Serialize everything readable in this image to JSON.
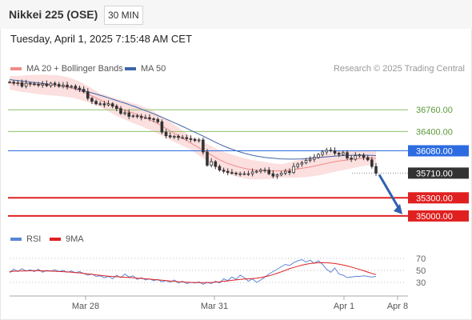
{
  "header": {
    "title": "Nikkei 225 (OSE)",
    "timeframe": "30 MIN"
  },
  "datetime": "Tuesday, April 1, 2025 7:15:48 AM CET",
  "legend": {
    "ma20_label": "MA 20 + Bollinger Bands",
    "ma20_color": "#f08b8b",
    "ma50_label": "MA 50",
    "ma50_color": "#3f64a8"
  },
  "credit": "Research © 2025 Trading Central",
  "chart_data": [
    {
      "type": "line",
      "title": "",
      "ylim": [
        34800,
        37320
      ],
      "x_tick_labels": [
        "Mar 28",
        "Mar 31",
        "Apr 1",
        "Apr 8"
      ],
      "levels": [
        {
          "label": "36760.00",
          "value": 36760,
          "kind": "resistance",
          "color": "#8cc16a"
        },
        {
          "label": "36400.00",
          "value": 36400,
          "kind": "resistance",
          "color": "#8cc16a"
        },
        {
          "label": "36080.00",
          "value": 36080,
          "kind": "pivot",
          "color": "#2d6ce0"
        },
        {
          "label": "35710.00",
          "value": 35710,
          "kind": "last_price",
          "color": "#333333"
        },
        {
          "label": "35300.00",
          "value": 35300,
          "kind": "support",
          "color": "#e02020"
        },
        {
          "label": "35000.00",
          "value": 35000,
          "kind": "support",
          "color": "#e02020"
        }
      ],
      "price_series": [
        37220,
        37200,
        37210,
        37150,
        37200,
        37190,
        37180,
        37170,
        37190,
        37160,
        37200,
        37180,
        37150,
        37170,
        37140,
        37150,
        37120,
        37100,
        37060,
        36950,
        36900,
        36860,
        36860,
        36840,
        36860,
        36820,
        36780,
        36700,
        36710,
        36650,
        36660,
        36650,
        36630,
        36630,
        36610,
        36600,
        36560,
        36390,
        36330,
        36310,
        36320,
        36300,
        36300,
        36280,
        36270,
        36250,
        36260,
        36060,
        35840,
        35900,
        35820,
        35760,
        35740,
        35720,
        35710,
        35700,
        35700,
        35700,
        35700,
        35730,
        35740,
        35760,
        35760,
        35700,
        35660,
        35680,
        35710,
        35740,
        35720,
        35820,
        35860,
        35880,
        35920,
        35940,
        35970,
        36020,
        36060,
        36090,
        36080,
        36040,
        36020,
        36050,
        35960,
        35940,
        36000,
        36010,
        35970,
        35930,
        35820,
        35710
      ],
      "ma20_series": [
        37210,
        37200,
        37195,
        37190,
        37190,
        37188,
        37184,
        37180,
        37176,
        37172,
        37168,
        37164,
        37158,
        37150,
        37138,
        37122,
        37100,
        37078,
        37050,
        37020,
        36988,
        36956,
        36924,
        36892,
        36860,
        36830,
        36800,
        36776,
        36752,
        36728,
        36704,
        36680,
        36655,
        36628,
        36600,
        36566,
        36530,
        36490,
        36450,
        36410,
        36370,
        36330,
        36290,
        36250,
        36210,
        36170,
        36130,
        36090,
        36050,
        36010,
        35970,
        35930,
        35900,
        35870,
        35846,
        35826,
        35806,
        35790,
        35776,
        35766,
        35760,
        35756,
        35752,
        35748,
        35744,
        35744,
        35748,
        35752,
        35760,
        35770,
        35780,
        35790,
        35800,
        35812,
        35826,
        35840,
        35856,
        35872,
        35886,
        35900,
        35910,
        35920,
        35928,
        35936,
        35944,
        35950,
        35954,
        35956,
        35956,
        35954
      ],
      "ma50_series": [
        37260,
        37252,
        37244,
        37236,
        37228,
        37220,
        37212,
        37204,
        37196,
        37188,
        37178,
        37168,
        37158,
        37148,
        37136,
        37122,
        37108,
        37092,
        37076,
        37058,
        37040,
        37020,
        37000,
        36980,
        36958,
        36936,
        36914,
        36892,
        36870,
        36846,
        36822,
        36798,
        36772,
        36746,
        36720,
        36692,
        36664,
        36636,
        36606,
        36576,
        36546,
        36516,
        36484,
        36452,
        36420,
        36388,
        36356,
        36324,
        36290,
        36256,
        36222,
        36190,
        36160,
        36132,
        36106,
        36082,
        36060,
        36040,
        36022,
        36006,
        35992,
        35980,
        35970,
        35962,
        35956,
        35950,
        35946,
        35944,
        35942,
        35942,
        35944,
        35946,
        35950,
        35956,
        35962,
        35968,
        35974,
        35980,
        35986,
        35992,
        35996,
        36000,
        36004,
        36006,
        36008,
        36008,
        36008,
        36006,
        36004,
        36000
      ]
    },
    {
      "type": "line",
      "title": "",
      "ylim": [
        18,
        82
      ],
      "y_ticks": [
        "70",
        "50",
        "30"
      ],
      "series": [
        {
          "name": "RSI",
          "color": "#5b86d6",
          "values": [
            46,
            52,
            48,
            53,
            49,
            51,
            48,
            52,
            47,
            50,
            49,
            51,
            48,
            50,
            47,
            49,
            46,
            48,
            45,
            42,
            44,
            40,
            41,
            38,
            40,
            36,
            42,
            38,
            44,
            39,
            41,
            35,
            38,
            34,
            36,
            33,
            35,
            31,
            33,
            30,
            34,
            29,
            32,
            28,
            30,
            29,
            31,
            27,
            30,
            28,
            32,
            29,
            36,
            33,
            39,
            35,
            42,
            38,
            32,
            36,
            30,
            34,
            39,
            44,
            48,
            52,
            56,
            60,
            58,
            63,
            66,
            68,
            64,
            67,
            62,
            66,
            60,
            52,
            47,
            54,
            44,
            42,
            38,
            39,
            40,
            40,
            41,
            40,
            39,
            40
          ]
        },
        {
          "name": "9MA",
          "color": "#e02020",
          "values": [
            48,
            48.5,
            49,
            49,
            49.2,
            49.4,
            49.6,
            49.4,
            49.2,
            49,
            48.8,
            48.6,
            48.2,
            47.8,
            47.4,
            47,
            46.4,
            45.8,
            45,
            44.2,
            43.4,
            42.6,
            41.8,
            41,
            40.4,
            39.8,
            39.4,
            39,
            38.6,
            38.2,
            37.8,
            37.2,
            36.6,
            36,
            35.4,
            34.8,
            34.2,
            33.6,
            33,
            32.4,
            31.8,
            31.2,
            30.8,
            30.4,
            30,
            29.8,
            29.6,
            29.6,
            29.8,
            30,
            30.4,
            31,
            31.8,
            32.6,
            33.4,
            34.2,
            35,
            35.6,
            36,
            36.4,
            37,
            38,
            39.4,
            41,
            43,
            45.2,
            47.6,
            50.2,
            52.8,
            55,
            57,
            58.8,
            60.2,
            61.4,
            62.2,
            62.8,
            63,
            62.8,
            62.2,
            61.4,
            60.4,
            59,
            57.4,
            55.6,
            53.6,
            51.6,
            49.4,
            47.2,
            45,
            43
          ]
        }
      ]
    }
  ],
  "rsi_legend": {
    "rsi_label": "RSI",
    "rsi_color": "#5b86d6",
    "ma_label": "9MA",
    "ma_color": "#e02020"
  }
}
